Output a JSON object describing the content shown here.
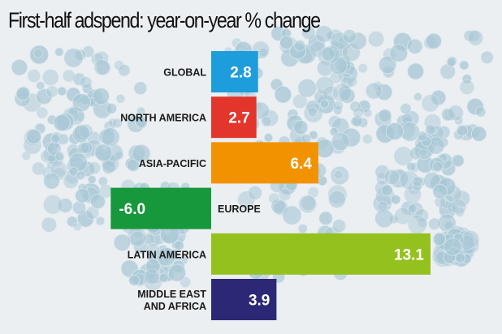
{
  "chart_data": {
    "type": "bar",
    "orientation": "horizontal",
    "title": "First-half adspend: year-on-year % change",
    "categories": [
      "GLOBAL",
      "NORTH AMERICA",
      "ASIA-PACIFIC",
      "EUROPE",
      "LATIN AMERICA",
      "MIDDLE EAST AND AFRICA"
    ],
    "values": [
      2.8,
      2.7,
      6.4,
      -6.0,
      13.1,
      3.9
    ],
    "value_labels": [
      "2.8",
      "2.7",
      "6.4",
      "-6.0",
      "13.1",
      "3.9"
    ],
    "colors": [
      "#1e9ddc",
      "#e2352b",
      "#f39200",
      "#17983c",
      "#95c11f",
      "#2d2876"
    ],
    "xlim": [
      -6.0,
      13.1
    ],
    "grid": false,
    "legend": "none",
    "xlabel": "",
    "ylabel": ""
  },
  "background": {
    "description_color": "#a9c8d6"
  }
}
